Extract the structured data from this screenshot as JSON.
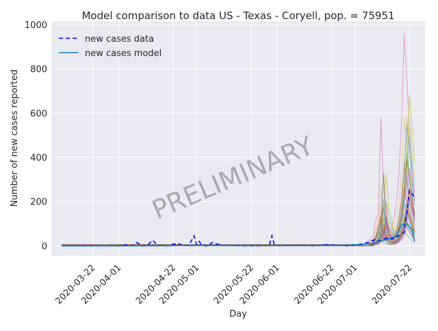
{
  "chart_data": {
    "type": "line",
    "title": "Model comparison to data US - Texas - Coryell, pop. = 75951",
    "xlabel": "Day",
    "ylabel": "Number of new cases reported",
    "x_range": [
      "2020-03-06",
      "2020-07-28"
    ],
    "ylim": [
      -45,
      1015
    ],
    "y_ticks": [
      0,
      200,
      400,
      600,
      800,
      1000
    ],
    "x_ticks": [
      "2020-03-22",
      "2020-04-01",
      "2020-04-22",
      "2020-05-01",
      "2020-05-22",
      "2020-06-01",
      "2020-06-22",
      "2020-07-01",
      "2020-07-22"
    ],
    "grid": true,
    "legend_position": "top-left",
    "watermark": "PRELIMINARY",
    "series": [
      {
        "name": "new cases data",
        "style": "dashed",
        "color": "#0000ff",
        "points": [
          [
            "2020-03-10",
            0
          ],
          [
            "2020-04-02",
            0
          ],
          [
            "2020-04-04",
            5
          ],
          [
            "2020-04-06",
            0
          ],
          [
            "2020-04-08",
            15
          ],
          [
            "2020-04-10",
            0
          ],
          [
            "2020-04-12",
            2
          ],
          [
            "2020-04-14",
            25
          ],
          [
            "2020-04-16",
            3
          ],
          [
            "2020-04-18",
            0
          ],
          [
            "2020-04-20",
            0
          ],
          [
            "2020-04-22",
            8
          ],
          [
            "2020-04-24",
            10
          ],
          [
            "2020-04-26",
            0
          ],
          [
            "2020-04-28",
            3
          ],
          [
            "2020-04-30",
            45
          ],
          [
            "2020-05-01",
            5
          ],
          [
            "2020-05-02",
            20
          ],
          [
            "2020-05-03",
            2
          ],
          [
            "2020-05-05",
            0
          ],
          [
            "2020-05-07",
            15
          ],
          [
            "2020-05-09",
            8
          ],
          [
            "2020-05-11",
            3
          ],
          [
            "2020-05-15",
            2
          ],
          [
            "2020-05-19",
            0
          ],
          [
            "2020-05-25",
            0
          ],
          [
            "2020-05-29",
            2
          ],
          [
            "2020-05-30",
            45
          ],
          [
            "2020-05-31",
            2
          ],
          [
            "2020-06-02",
            0
          ],
          [
            "2020-06-10",
            3
          ],
          [
            "2020-06-15",
            0
          ],
          [
            "2020-06-20",
            5
          ],
          [
            "2020-06-25",
            2
          ],
          [
            "2020-06-29",
            0
          ],
          [
            "2020-07-02",
            5
          ],
          [
            "2020-07-05",
            12
          ],
          [
            "2020-07-07",
            20
          ],
          [
            "2020-07-09",
            30
          ],
          [
            "2020-07-11",
            20
          ],
          [
            "2020-07-13",
            35
          ],
          [
            "2020-07-15",
            30
          ],
          [
            "2020-07-17",
            40
          ],
          [
            "2020-07-20",
            60
          ],
          [
            "2020-07-22",
            250
          ],
          [
            "2020-07-24",
            220
          ]
        ]
      },
      {
        "name": "new cases model",
        "style": "solid",
        "color": "#1f77b4",
        "points": [
          [
            "2020-03-10",
            0
          ],
          [
            "2020-04-15",
            0
          ],
          [
            "2020-05-01",
            3
          ],
          [
            "2020-05-15",
            2
          ],
          [
            "2020-06-01",
            1
          ],
          [
            "2020-06-25",
            2
          ],
          [
            "2020-07-03",
            5
          ],
          [
            "2020-07-08",
            12
          ],
          [
            "2020-07-12",
            25
          ],
          [
            "2020-07-15",
            35
          ],
          [
            "2020-07-17",
            45
          ],
          [
            "2020-07-19",
            95
          ],
          [
            "2020-07-21",
            100
          ],
          [
            "2020-07-22",
            85
          ],
          [
            "2020-07-23",
            75
          ],
          [
            "2020-07-24",
            20
          ]
        ]
      }
    ]
  }
}
